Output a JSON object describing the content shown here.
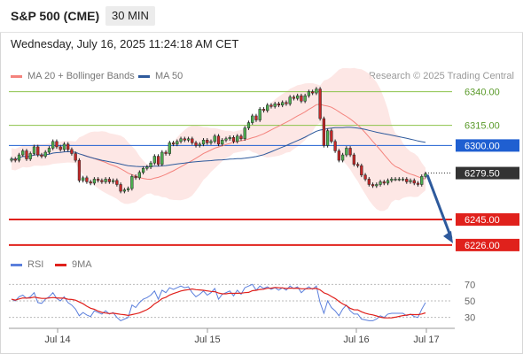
{
  "header": {
    "title": "S&P 500 (CME)",
    "timeframe": "30 MIN"
  },
  "datetime": "Wednesday, July 16, 2025 11:24:18 AM CET",
  "copyright": "Research © 2025 Trading Central",
  "legend": {
    "ma20": {
      "label": "MA 20 + Bollinger Bands",
      "color": "#f4837d"
    },
    "ma50": {
      "label": "MA 50",
      "color": "#2e5a9c"
    },
    "rsi": {
      "label": "RSI",
      "color": "#5b7fdc"
    },
    "ma9": {
      "label": "9MA",
      "color": "#e0211c"
    }
  },
  "chart_data": [
    {
      "type": "candlestick",
      "x_labels": [
        "Jul 14",
        "Jul 15",
        "Jul 16",
        "Jul 17"
      ],
      "ylim": [
        6220,
        6345
      ],
      "levels": [
        {
          "value": 6340.0,
          "label": "6340.00",
          "kind": "resistance",
          "color": "#8bc34a"
        },
        {
          "value": 6315.0,
          "label": "6315.00",
          "kind": "resistance",
          "color": "#8bc34a"
        },
        {
          "value": 6300.0,
          "label": "6300.00",
          "kind": "pivot",
          "color": "#1f5fd1"
        },
        {
          "value": 6279.5,
          "label": "6279.50",
          "kind": "last-price",
          "color": "#333333"
        },
        {
          "value": 6245.0,
          "label": "6245.00",
          "kind": "support",
          "color": "#e0211c"
        },
        {
          "value": 6226.0,
          "label": "6226.00",
          "kind": "support",
          "color": "#e0211c"
        }
      ],
      "close": [
        6290,
        6289,
        6293,
        6296,
        6290,
        6294,
        6299,
        6293,
        6292,
        6295,
        6298,
        6303,
        6299,
        6297,
        6301,
        6297,
        6294,
        6289,
        6274,
        6276,
        6273,
        6272,
        6275,
        6274,
        6273,
        6275,
        6273,
        6274,
        6271,
        6266,
        6267,
        6268,
        6277,
        6276,
        6280,
        6283,
        6284,
        6287,
        6292,
        6286,
        6295,
        6294,
        6302,
        6301,
        6303,
        6305,
        6304,
        6305,
        6302,
        6300,
        6301,
        6304,
        6302,
        6303,
        6307,
        6301,
        6304,
        6305,
        6306,
        6303,
        6307,
        6305,
        6313,
        6317,
        6322,
        6319,
        6327,
        6326,
        6330,
        6329,
        6331,
        6330,
        6332,
        6331,
        6336,
        6335,
        6337,
        6333,
        6337,
        6340,
        6339,
        6342,
        6320,
        6300,
        6311,
        6303,
        6296,
        6289,
        6293,
        6298,
        6293,
        6286,
        6285,
        6278,
        6275,
        6271,
        6270,
        6271,
        6273,
        6272,
        6274,
        6275,
        6275,
        6275,
        6275,
        6273,
        6274,
        6272,
        6271,
        6277,
        6279
      ],
      "ma20_start_index": 19,
      "ma50_start_index": 0,
      "bollinger_std_multiplier": 2,
      "arrow": {
        "from": 6279.5,
        "to": 6226.0,
        "direction": "down",
        "color": "#2e5a9c"
      }
    },
    {
      "type": "line",
      "name": "RSI",
      "ylim": [
        20,
        80
      ],
      "y_ticks": [
        {
          "value": 70,
          "label": "70"
        },
        {
          "value": 50,
          "label": "50"
        },
        {
          "value": 30,
          "label": "30"
        }
      ],
      "rsi": [
        52,
        50,
        55,
        57,
        53,
        55,
        60,
        48,
        47,
        52,
        55,
        60,
        53,
        50,
        55,
        48,
        45,
        40,
        32,
        36,
        33,
        31,
        38,
        36,
        34,
        38,
        34,
        36,
        30,
        26,
        28,
        30,
        45,
        42,
        48,
        52,
        54,
        57,
        62,
        52,
        63,
        60,
        66,
        64,
        66,
        68,
        66,
        67,
        60,
        55,
        58,
        62,
        57,
        60,
        65,
        52,
        58,
        60,
        62,
        56,
        63,
        58,
        66,
        68,
        70,
        63,
        68,
        65,
        67,
        64,
        66,
        63,
        66,
        63,
        68,
        65,
        67,
        60,
        64,
        67,
        64,
        68,
        48,
        35,
        50,
        42,
        38,
        32,
        40,
        45,
        38,
        34,
        34,
        28,
        27,
        26,
        26,
        28,
        32,
        30,
        34,
        35,
        35,
        35,
        35,
        32,
        34,
        31,
        30,
        40,
        48
      ],
      "ma9": []
    }
  ]
}
